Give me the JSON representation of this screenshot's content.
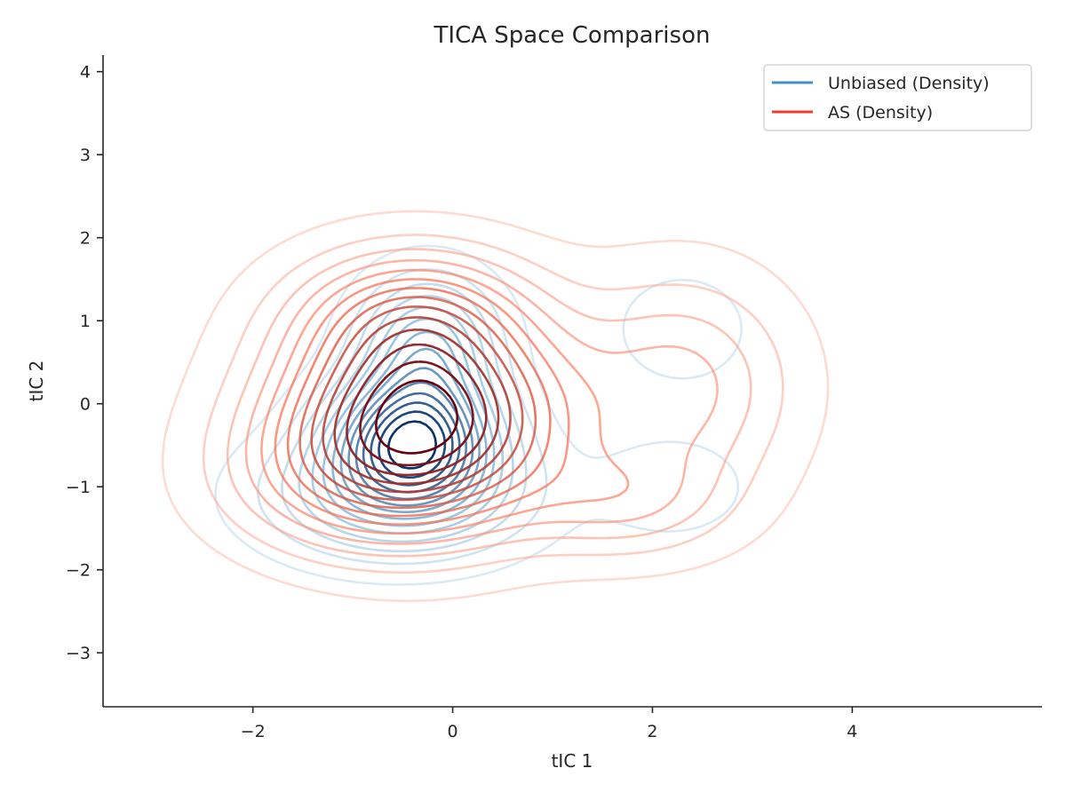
{
  "chart_data": {
    "type": "contour",
    "title": "TICA Space Comparison",
    "xlabel": "tIC 1",
    "ylabel": "tIC 2",
    "xlim": [
      -3.5,
      5.9
    ],
    "ylim": [
      -3.65,
      4.2
    ],
    "xticks": [
      -2,
      0,
      2,
      4
    ],
    "yticks": [
      -3,
      -2,
      -1,
      0,
      1,
      2,
      3,
      4
    ],
    "xtick_labels": [
      "−2",
      "0",
      "2",
      "4"
    ],
    "ytick_labels": [
      "−3",
      "−2",
      "−1",
      "0",
      "1",
      "2",
      "3",
      "4"
    ],
    "grid": false,
    "legend_position": "top-right",
    "legend": [
      {
        "label": "Unbiased (Density)",
        "color": "#4292c6"
      },
      {
        "label": "AS (Density)",
        "color": "#ef3b2c"
      }
    ],
    "series": [
      {
        "name": "Unbiased (Density)",
        "colormap": "Blues",
        "levels": 14,
        "components": [
          {
            "weight": 1.0,
            "mean": [
              -0.4,
              -0.4
            ],
            "sd": [
              0.55,
              0.5
            ]
          },
          {
            "weight": 0.55,
            "mean": [
              -0.25,
              0.7
            ],
            "sd": [
              0.45,
              0.55
            ]
          },
          {
            "weight": 0.5,
            "mean": [
              -0.55,
              -1.1
            ],
            "sd": [
              0.85,
              0.5
            ]
          },
          {
            "weight": 0.12,
            "mean": [
              2.3,
              0.9
            ],
            "sd": [
              0.45,
              0.45
            ]
          },
          {
            "weight": 0.12,
            "mean": [
              2.2,
              -1.0
            ],
            "sd": [
              0.5,
              0.4
            ]
          }
        ]
      },
      {
        "name": "AS (Density)",
        "colormap": "Reds",
        "levels": 14,
        "components": [
          {
            "weight": 1.0,
            "mean": [
              -0.3,
              -0.2
            ],
            "sd": [
              0.95,
              0.85
            ]
          },
          {
            "weight": 0.35,
            "mean": [
              -0.4,
              1.1
            ],
            "sd": [
              0.8,
              0.55
            ]
          },
          {
            "weight": 0.28,
            "mean": [
              2.3,
              0.2
            ],
            "sd": [
              0.75,
              0.9
            ]
          },
          {
            "weight": 0.2,
            "mean": [
              1.7,
              -1.2
            ],
            "sd": [
              0.7,
              0.45
            ]
          },
          {
            "weight": 0.18,
            "mean": [
              -1.3,
              -0.9
            ],
            "sd": [
              0.8,
              0.6
            ]
          }
        ]
      }
    ]
  }
}
